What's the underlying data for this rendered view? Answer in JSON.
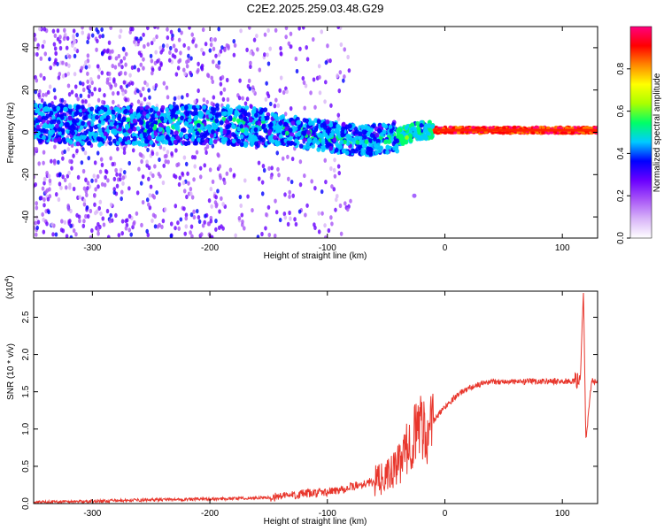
{
  "title": "C2E2.2025.259.03.48.G29",
  "chart_data": [
    {
      "type": "heatmap",
      "xlabel": "Height of straight line (km)",
      "ylabel": "Frequency (Hz)",
      "xlim": [
        -350,
        130
      ],
      "ylim": [
        -50,
        50
      ],
      "x_ticks": [
        -300,
        -200,
        -100,
        0,
        100
      ],
      "y_ticks": [
        -40,
        -20,
        0,
        20,
        40
      ],
      "colorbar": {
        "label": "Normalized spectral amplitude",
        "range": [
          0.0,
          1.0
        ],
        "ticks": [
          0.0,
          0.2,
          0.4,
          0.6,
          0.8
        ],
        "tick_labels": [
          "0.0",
          "0.2",
          "0.4",
          "0.6",
          "0.8"
        ],
        "colors": [
          "#ffffff",
          "#d8b4f8",
          "#a855f7",
          "#6a00ff",
          "#0000ff",
          "#00ccff",
          "#00ff66",
          "#aaff00",
          "#ffff00",
          "#ff8800",
          "#ff0000",
          "#ff007f"
        ]
      },
      "ridge": [
        {
          "x": -330,
          "y": 4
        },
        {
          "x": -300,
          "y": 3
        },
        {
          "x": -250,
          "y": 3
        },
        {
          "x": -200,
          "y": 4
        },
        {
          "x": -150,
          "y": 2
        },
        {
          "x": -100,
          "y": -2
        },
        {
          "x": -70,
          "y": -4
        },
        {
          "x": -40,
          "y": -2
        },
        {
          "x": -20,
          "y": 1
        },
        {
          "x": 0,
          "y": 1
        },
        {
          "x": 50,
          "y": 1
        },
        {
          "x": 100,
          "y": 1
        },
        {
          "x": 125,
          "y": 1
        }
      ],
      "outlier": {
        "x": -26,
        "y": -30
      }
    },
    {
      "type": "line",
      "xlabel": "Height of straight line (km)",
      "ylabel": "SNR (10 * v/v)",
      "y_multiplier": "(x10",
      "y_multiplier_exp": "4",
      "y_multiplier_close": ")",
      "xlim": [
        -350,
        130
      ],
      "ylim": [
        0,
        2.85
      ],
      "x_ticks": [
        -300,
        -200,
        -100,
        0,
        100
      ],
      "y_ticks": [
        0.0,
        0.5,
        1.0,
        1.5,
        2.0,
        2.5
      ],
      "y_tick_labels": [
        "0.0",
        "0.5",
        "1.0",
        "1.5",
        "2.0",
        "2.5"
      ],
      "color": "#e8362c",
      "series": [
        {
          "x": [
            -350,
            -300,
            -250,
            -200,
            -150,
            -120,
            -100,
            -80,
            -60,
            -50,
            -40,
            -30,
            -20,
            -15,
            -10,
            -5,
            0,
            10,
            20,
            30,
            40,
            60,
            80,
            100,
            110,
            115,
            118,
            120,
            125,
            130
          ],
          "y": [
            0.02,
            0.03,
            0.05,
            0.06,
            0.08,
            0.13,
            0.15,
            0.22,
            0.3,
            0.35,
            0.5,
            0.8,
            1.1,
            0.9,
            1.1,
            1.2,
            1.3,
            1.45,
            1.55,
            1.6,
            1.64,
            1.63,
            1.64,
            1.64,
            1.64,
            1.64,
            2.85,
            0.85,
            1.65,
            1.63
          ]
        }
      ]
    }
  ]
}
